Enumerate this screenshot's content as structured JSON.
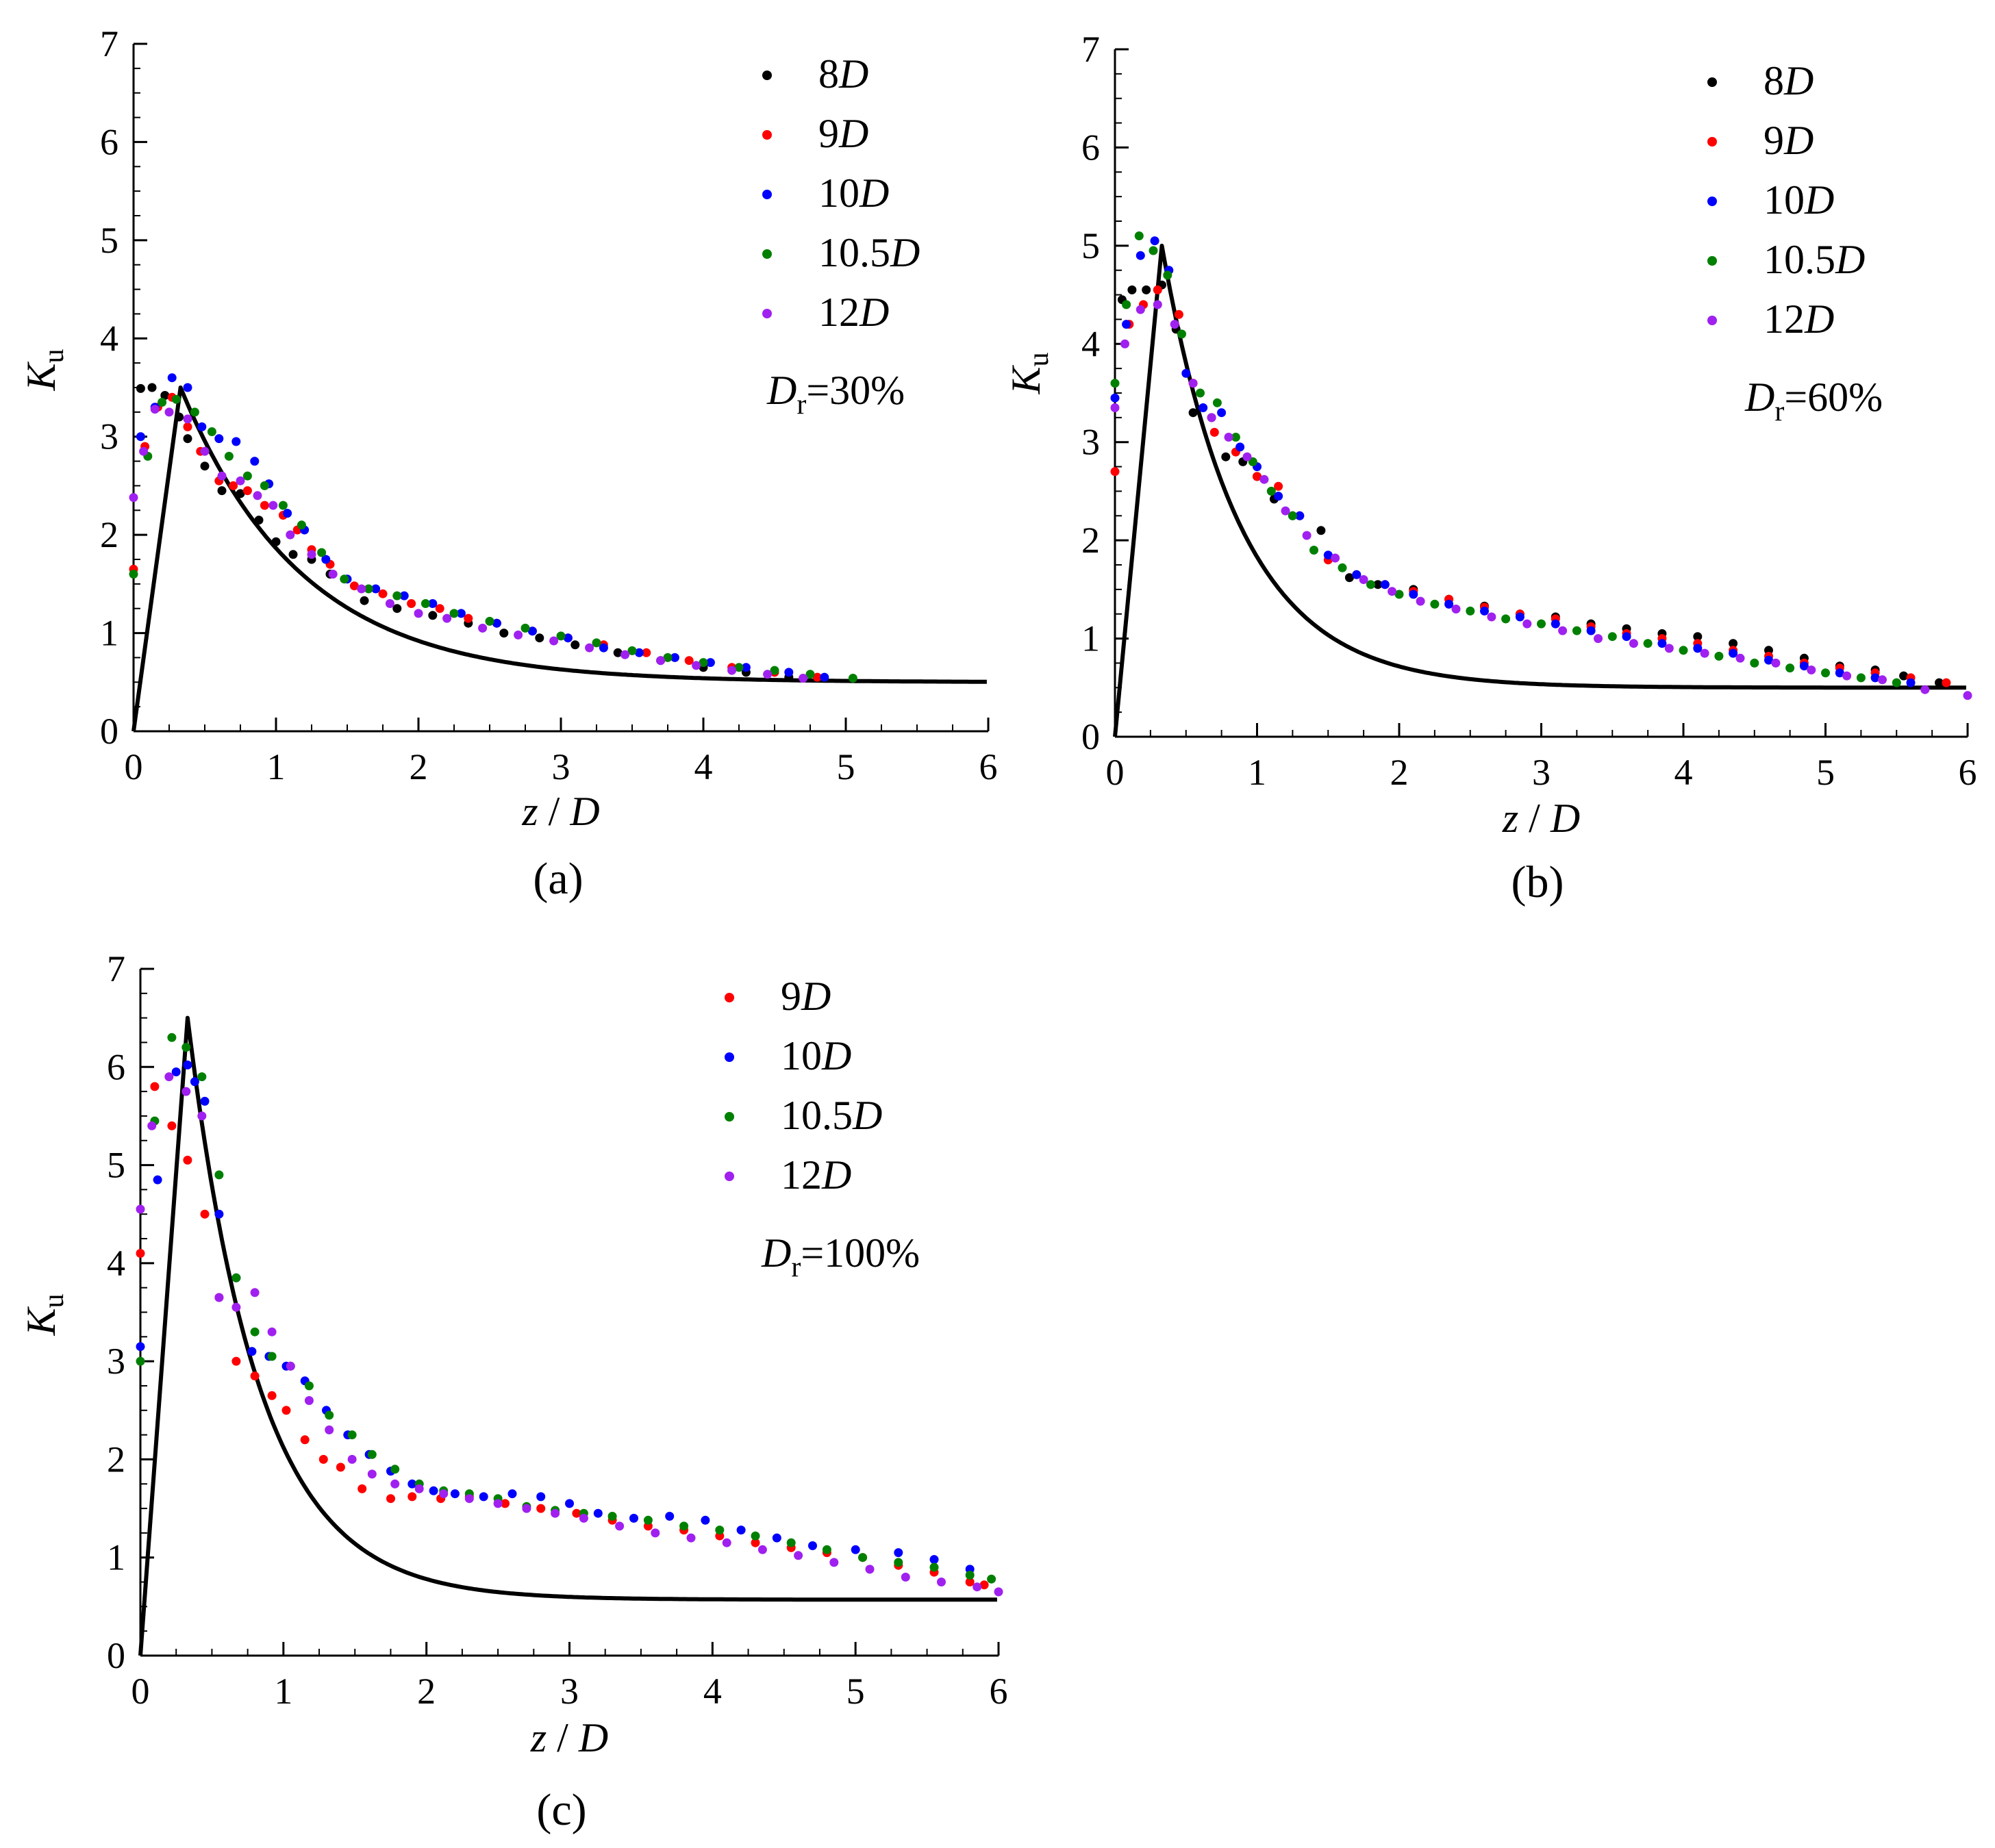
{
  "colors": {
    "8D": "#000000",
    "9D": "#ff0000",
    "10D": "#0000ff",
    "10.5D": "#008000",
    "12D": "#a020f0",
    "model_line": "#000000"
  },
  "chart_data": [
    {
      "type": "scatter",
      "panel_label": "(a)",
      "xlabel": {
        "z": "z",
        "slash": " / ",
        "D": "D"
      },
      "ylabel": {
        "K": "K",
        "sub": "u"
      },
      "xlim": [
        0,
        6
      ],
      "ylim": [
        0,
        7
      ],
      "xticks": [
        "0",
        "1",
        "2",
        "3",
        "4",
        "5",
        "6"
      ],
      "yticks": [
        "0",
        "1",
        "2",
        "3",
        "4",
        "5",
        "6",
        "7"
      ],
      "annotation": {
        "D": "D",
        "sub": "r",
        "value": "=30%"
      },
      "legend_position": "top-right",
      "model_line": {
        "peak_z": 0.33,
        "peak_K": 3.5,
        "asymptote": 0.5,
        "decay": 0.85,
        "x_end": 6
      },
      "series": [
        {
          "key": "8D",
          "name_num": "8",
          "name_D": "D",
          "x": [
            0.05,
            0.13,
            0.22,
            0.32,
            0.38,
            0.5,
            0.62,
            0.75,
            0.88,
            1.0,
            1.12,
            1.25,
            1.38,
            1.62,
            1.85,
            2.1,
            2.35,
            2.6,
            2.85,
            3.1,
            3.4,
            3.7,
            4.0,
            4.3,
            4.6
          ],
          "y": [
            3.49,
            3.5,
            3.42,
            3.2,
            2.98,
            2.7,
            2.45,
            2.42,
            2.15,
            1.93,
            1.8,
            1.75,
            1.6,
            1.33,
            1.25,
            1.18,
            1.1,
            1.0,
            0.95,
            0.88,
            0.8,
            0.72,
            0.65,
            0.6,
            0.55
          ]
        },
        {
          "key": "9D",
          "name_num": "9",
          "name_D": "D",
          "x": [
            0.0,
            0.08,
            0.17,
            0.27,
            0.38,
            0.47,
            0.6,
            0.7,
            0.8,
            0.92,
            1.05,
            1.15,
            1.25,
            1.38,
            1.55,
            1.75,
            1.95,
            2.15,
            2.35,
            2.55,
            2.8,
            3.05,
            3.3,
            3.6,
            3.9,
            4.2,
            4.5,
            4.8
          ],
          "y": [
            1.65,
            2.9,
            3.3,
            3.4,
            3.1,
            2.85,
            2.55,
            2.5,
            2.45,
            2.3,
            2.2,
            2.05,
            1.85,
            1.7,
            1.48,
            1.4,
            1.3,
            1.25,
            1.15,
            1.1,
            1.02,
            0.95,
            0.88,
            0.8,
            0.72,
            0.65,
            0.6,
            0.55
          ]
        },
        {
          "key": "10D",
          "name_num": "10",
          "name_D": "D",
          "x": [
            0.05,
            0.15,
            0.27,
            0.38,
            0.48,
            0.6,
            0.72,
            0.85,
            0.95,
            1.08,
            1.2,
            1.35,
            1.5,
            1.7,
            1.9,
            2.1,
            2.3,
            2.55,
            2.8,
            3.05,
            3.3,
            3.55,
            3.8,
            4.05,
            4.3,
            4.6,
            4.85
          ],
          "y": [
            3.0,
            3.3,
            3.6,
            3.5,
            3.1,
            2.98,
            2.95,
            2.75,
            2.52,
            2.22,
            2.05,
            1.75,
            1.55,
            1.45,
            1.38,
            1.3,
            1.2,
            1.1,
            1.02,
            0.95,
            0.85,
            0.8,
            0.75,
            0.7,
            0.65,
            0.6,
            0.55
          ]
        },
        {
          "key": "10.5D",
          "name_num": "10.5",
          "name_D": "D",
          "x": [
            0.0,
            0.1,
            0.2,
            0.3,
            0.43,
            0.55,
            0.67,
            0.8,
            0.92,
            1.05,
            1.18,
            1.32,
            1.48,
            1.65,
            1.85,
            2.05,
            2.25,
            2.5,
            2.75,
            3.0,
            3.25,
            3.5,
            3.75,
            4.0,
            4.25,
            4.5,
            4.75,
            5.05
          ],
          "y": [
            1.6,
            2.8,
            3.35,
            3.38,
            3.25,
            3.05,
            2.8,
            2.6,
            2.5,
            2.3,
            2.1,
            1.82,
            1.55,
            1.45,
            1.38,
            1.3,
            1.2,
            1.12,
            1.05,
            0.97,
            0.9,
            0.82,
            0.75,
            0.7,
            0.65,
            0.62,
            0.58,
            0.54
          ]
        },
        {
          "key": "12D",
          "name_num": "12",
          "name_D": "D",
          "x": [
            0.0,
            0.07,
            0.15,
            0.25,
            0.38,
            0.5,
            0.62,
            0.75,
            0.87,
            0.98,
            1.1,
            1.25,
            1.4,
            1.6,
            1.8,
            2.0,
            2.2,
            2.45,
            2.7,
            2.95,
            3.2,
            3.45,
            3.7,
            3.95,
            4.2,
            4.45,
            4.7
          ],
          "y": [
            2.38,
            2.85,
            3.28,
            3.25,
            3.18,
            2.85,
            2.6,
            2.55,
            2.4,
            2.3,
            2.0,
            1.8,
            1.6,
            1.45,
            1.3,
            1.2,
            1.15,
            1.05,
            0.98,
            0.92,
            0.85,
            0.78,
            0.72,
            0.67,
            0.62,
            0.58,
            0.54
          ]
        }
      ]
    },
    {
      "type": "scatter",
      "panel_label": "(b)",
      "xlabel": {
        "z": "z",
        "slash": " / ",
        "D": "D"
      },
      "ylabel": {
        "K": "K",
        "sub": "u"
      },
      "xlim": [
        0,
        6
      ],
      "ylim": [
        0,
        7
      ],
      "xticks": [
        "0",
        "1",
        "2",
        "3",
        "4",
        "5",
        "6"
      ],
      "yticks": [
        "0",
        "1",
        "2",
        "3",
        "4",
        "5",
        "6",
        "7"
      ],
      "annotation": {
        "D": "D",
        "sub": "r",
        "value": "=60%"
      },
      "legend_position": "top-right",
      "model_line": {
        "peak_z": 0.33,
        "peak_K": 5.0,
        "asymptote": 0.5,
        "decay": 0.55,
        "x_end": 6
      },
      "series": [
        {
          "key": "8D",
          "name_num": "8",
          "name_D": "D",
          "x": [
            0.05,
            0.12,
            0.22,
            0.33,
            0.43,
            0.55,
            0.68,
            0.78,
            0.9,
            1.0,
            1.12,
            1.25,
            1.45,
            1.65,
            1.85,
            2.1,
            2.35,
            2.6,
            2.85,
            3.1,
            3.35,
            3.6,
            3.85,
            4.1,
            4.35,
            4.6,
            4.85,
            5.1,
            5.35,
            5.55,
            5.8
          ],
          "y": [
            4.45,
            4.55,
            4.55,
            4.6,
            4.15,
            3.3,
            3.25,
            2.85,
            2.8,
            2.65,
            2.42,
            2.25,
            2.1,
            1.62,
            1.55,
            1.5,
            1.4,
            1.33,
            1.25,
            1.22,
            1.15,
            1.1,
            1.05,
            1.02,
            0.95,
            0.88,
            0.8,
            0.72,
            0.68,
            0.62,
            0.55
          ]
        },
        {
          "key": "9D",
          "name_num": "9",
          "name_D": "D",
          "x": [
            0.0,
            0.1,
            0.2,
            0.3,
            0.45,
            0.55,
            0.7,
            0.85,
            1.0,
            1.15,
            1.3,
            1.5,
            1.7,
            1.9,
            2.1,
            2.35,
            2.6,
            2.85,
            3.1,
            3.35,
            3.6,
            3.85,
            4.1,
            4.35,
            4.6,
            4.85,
            5.1,
            5.35,
            5.6,
            5.85
          ],
          "y": [
            2.7,
            4.2,
            4.4,
            4.55,
            4.3,
            3.6,
            3.1,
            2.9,
            2.65,
            2.55,
            2.25,
            1.8,
            1.65,
            1.55,
            1.48,
            1.4,
            1.32,
            1.25,
            1.2,
            1.12,
            1.05,
            1.0,
            0.95,
            0.88,
            0.82,
            0.75,
            0.7,
            0.65,
            0.6,
            0.55
          ]
        },
        {
          "key": "10D",
          "name_num": "10",
          "name_D": "D",
          "x": [
            0.0,
            0.08,
            0.18,
            0.28,
            0.38,
            0.5,
            0.62,
            0.75,
            0.88,
            1.0,
            1.15,
            1.3,
            1.5,
            1.7,
            1.9,
            2.1,
            2.35,
            2.6,
            2.85,
            3.1,
            3.35,
            3.6,
            3.85,
            4.1,
            4.35,
            4.6,
            4.85,
            5.1,
            5.35,
            5.6
          ],
          "y": [
            3.45,
            4.2,
            4.9,
            5.05,
            4.75,
            3.7,
            3.35,
            3.3,
            2.95,
            2.75,
            2.45,
            2.25,
            1.85,
            1.65,
            1.55,
            1.45,
            1.35,
            1.28,
            1.22,
            1.15,
            1.08,
            1.02,
            0.95,
            0.9,
            0.85,
            0.78,
            0.72,
            0.65,
            0.6,
            0.55
          ]
        },
        {
          "key": "10.5D",
          "name_num": "10.5",
          "name_D": "D",
          "x": [
            0.0,
            0.08,
            0.17,
            0.27,
            0.37,
            0.47,
            0.6,
            0.72,
            0.85,
            0.97,
            1.1,
            1.25,
            1.4,
            1.6,
            1.8,
            2.0,
            2.25,
            2.5,
            2.75,
            3.0,
            3.25,
            3.5,
            3.75,
            4.0,
            4.25,
            4.5,
            4.75,
            5.0,
            5.25,
            5.5
          ],
          "y": [
            3.6,
            4.4,
            5.1,
            4.95,
            4.7,
            4.1,
            3.5,
            3.4,
            3.05,
            2.8,
            2.5,
            2.25,
            1.9,
            1.72,
            1.55,
            1.45,
            1.35,
            1.28,
            1.2,
            1.15,
            1.08,
            1.02,
            0.95,
            0.88,
            0.82,
            0.75,
            0.7,
            0.65,
            0.6,
            0.55
          ]
        },
        {
          "key": "12D",
          "name_num": "12",
          "name_D": "D",
          "x": [
            0.0,
            0.07,
            0.18,
            0.3,
            0.42,
            0.55,
            0.68,
            0.8,
            0.93,
            1.05,
            1.2,
            1.35,
            1.55,
            1.75,
            1.95,
            2.15,
            2.4,
            2.65,
            2.9,
            3.15,
            3.4,
            3.65,
            3.9,
            4.15,
            4.4,
            4.65,
            4.9,
            5.15,
            5.4,
            5.7,
            6.0
          ],
          "y": [
            3.35,
            4.0,
            4.35,
            4.4,
            4.2,
            3.6,
            3.25,
            3.05,
            2.85,
            2.62,
            2.3,
            2.05,
            1.82,
            1.6,
            1.48,
            1.38,
            1.3,
            1.22,
            1.15,
            1.08,
            1.0,
            0.95,
            0.9,
            0.85,
            0.8,
            0.75,
            0.68,
            0.62,
            0.58,
            0.48,
            0.42
          ]
        }
      ]
    },
    {
      "type": "scatter",
      "panel_label": "(c)",
      "xlabel": {
        "z": "z",
        "slash": " / ",
        "D": "D"
      },
      "ylabel": {
        "K": "K",
        "sub": "u"
      },
      "xlim": [
        0,
        6
      ],
      "ylim": [
        0,
        7
      ],
      "xticks": [
        "0",
        "1",
        "2",
        "3",
        "4",
        "5",
        "6"
      ],
      "yticks": [
        "0",
        "1",
        "2",
        "3",
        "4",
        "5",
        "6",
        "7"
      ],
      "annotation": {
        "D": "D",
        "sub": "r",
        "value": "=100%"
      },
      "legend_position": "top-right",
      "model_line": {
        "peak_z": 0.33,
        "peak_K": 6.5,
        "asymptote": 0.57,
        "decay": 0.5,
        "x_end": 6
      },
      "series": [
        {
          "key": "9D",
          "name_num": "9",
          "name_D": "D",
          "x": [
            0.0,
            0.1,
            0.22,
            0.33,
            0.45,
            0.55,
            0.67,
            0.8,
            0.92,
            1.02,
            1.15,
            1.28,
            1.4,
            1.55,
            1.75,
            1.9,
            2.1,
            2.3,
            2.55,
            2.8,
            3.05,
            3.3,
            3.55,
            3.8,
            4.05,
            4.3,
            4.55,
            4.8,
            5.05,
            5.3,
            5.55,
            5.8,
            5.9
          ],
          "y": [
            4.1,
            5.8,
            5.4,
            5.05,
            4.5,
            3.65,
            3.0,
            2.85,
            2.65,
            2.5,
            2.2,
            2.0,
            1.92,
            1.7,
            1.6,
            1.62,
            1.6,
            1.62,
            1.55,
            1.5,
            1.45,
            1.38,
            1.32,
            1.28,
            1.22,
            1.15,
            1.1,
            1.05,
            1.0,
            0.92,
            0.85,
            0.75,
            0.72
          ]
        },
        {
          "key": "10D",
          "name_num": "10",
          "name_D": "D",
          "x": [
            0.0,
            0.12,
            0.25,
            0.33,
            0.38,
            0.45,
            0.55,
            0.67,
            0.78,
            0.9,
            1.02,
            1.15,
            1.3,
            1.45,
            1.6,
            1.75,
            1.9,
            2.05,
            2.2,
            2.4,
            2.6,
            2.8,
            3.0,
            3.2,
            3.45,
            3.7,
            3.95,
            4.2,
            4.45,
            4.7,
            5.0,
            5.3,
            5.55,
            5.8
          ],
          "y": [
            3.15,
            4.85,
            5.95,
            6.02,
            5.85,
            5.65,
            4.5,
            3.85,
            3.1,
            3.05,
            2.95,
            2.8,
            2.5,
            2.25,
            2.05,
            1.88,
            1.75,
            1.68,
            1.65,
            1.62,
            1.65,
            1.62,
            1.55,
            1.45,
            1.4,
            1.42,
            1.38,
            1.28,
            1.2,
            1.12,
            1.08,
            1.05,
            0.98,
            0.88
          ]
        },
        {
          "key": "10.5D",
          "name_num": "10.5",
          "name_D": "D",
          "x": [
            0.0,
            0.1,
            0.22,
            0.32,
            0.43,
            0.55,
            0.67,
            0.8,
            0.92,
            1.05,
            1.18,
            1.32,
            1.48,
            1.62,
            1.78,
            1.95,
            2.12,
            2.3,
            2.5,
            2.7,
            2.9,
            3.1,
            3.3,
            3.55,
            3.8,
            4.05,
            4.3,
            4.55,
            4.8,
            5.05,
            5.3,
            5.55,
            5.8,
            5.95
          ],
          "y": [
            3.0,
            5.45,
            6.3,
            6.2,
            5.9,
            4.9,
            3.85,
            3.3,
            3.05,
            2.95,
            2.75,
            2.45,
            2.25,
            2.05,
            1.9,
            1.75,
            1.68,
            1.65,
            1.6,
            1.52,
            1.48,
            1.45,
            1.42,
            1.38,
            1.32,
            1.28,
            1.22,
            1.15,
            1.08,
            1.0,
            0.95,
            0.9,
            0.82,
            0.78
          ]
        },
        {
          "key": "12D",
          "name_num": "12",
          "name_D": "D",
          "x": [
            0.0,
            0.08,
            0.2,
            0.32,
            0.43,
            0.55,
            0.67,
            0.8,
            0.92,
            1.05,
            1.18,
            1.32,
            1.48,
            1.62,
            1.78,
            1.95,
            2.12,
            2.3,
            2.5,
            2.7,
            2.9,
            3.1,
            3.35,
            3.6,
            3.85,
            4.1,
            4.35,
            4.6,
            4.85,
            5.1,
            5.35,
            5.6,
            5.85,
            6.0
          ],
          "y": [
            4.55,
            5.4,
            5.9,
            5.75,
            5.5,
            3.65,
            3.55,
            3.7,
            3.3,
            2.95,
            2.6,
            2.3,
            2.0,
            1.85,
            1.75,
            1.7,
            1.65,
            1.6,
            1.55,
            1.5,
            1.45,
            1.4,
            1.32,
            1.25,
            1.2,
            1.15,
            1.08,
            1.02,
            0.95,
            0.88,
            0.8,
            0.75,
            0.7,
            0.65
          ]
        }
      ]
    }
  ]
}
